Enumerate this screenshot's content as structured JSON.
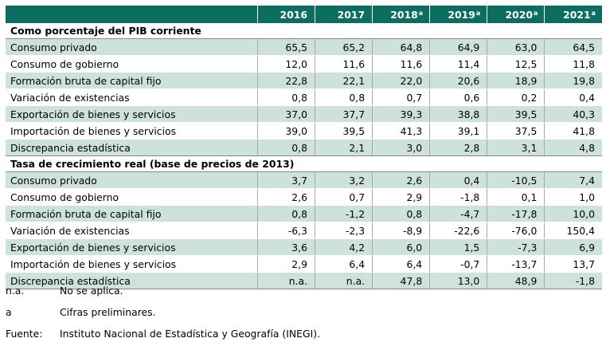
{
  "table": {
    "headers": [
      {
        "label": "2016",
        "sup": ""
      },
      {
        "label": "2017",
        "sup": ""
      },
      {
        "label": "2018",
        "sup": "a"
      },
      {
        "label": "2019",
        "sup": "a"
      },
      {
        "label": "2020",
        "sup": "a"
      },
      {
        "label": "2021",
        "sup": "a"
      }
    ],
    "sections": [
      {
        "title": "Como porcentaje del PIB corriente",
        "rows": [
          {
            "label": "Consumo privado",
            "values": [
              "65,5",
              "65,2",
              "64,8",
              "64,9",
              "63,0",
              "64,5"
            ]
          },
          {
            "label": "Consumo de gobierno",
            "values": [
              "12,0",
              "11,6",
              "11,6",
              "11,4",
              "12,5",
              "11,8"
            ]
          },
          {
            "label": "Formación bruta de capital fijo",
            "values": [
              "22,8",
              "22,1",
              "22,0",
              "20,6",
              "18,9",
              "19,8"
            ]
          },
          {
            "label": "Variación de existencias",
            "values": [
              "0,8",
              "0,8",
              "0,7",
              "0,6",
              "0,2",
              "0,4"
            ]
          },
          {
            "label": "Exportación de bienes y servicios",
            "values": [
              "37,0",
              "37,7",
              "39,3",
              "38,8",
              "39,5",
              "40,3"
            ]
          },
          {
            "label": "Importación de bienes y servicios",
            "values": [
              "39,0",
              "39,5",
              "41,3",
              "39,1",
              "37,5",
              "41,8"
            ]
          },
          {
            "label": "Discrepancia estadística",
            "values": [
              "0,8",
              "2,1",
              "3,0",
              "2,8",
              "3,1",
              "4,8"
            ]
          }
        ]
      },
      {
        "title": "Tasa de crecimiento real (base de precios de 2013)",
        "rows": [
          {
            "label": "Consumo privado",
            "values": [
              "3,7",
              "3,2",
              "2,6",
              "0,4",
              "-10,5",
              "7,4"
            ]
          },
          {
            "label": "Consumo de gobierno",
            "values": [
              "2,6",
              "0,7",
              "2,9",
              "-1,8",
              "0,1",
              "1,0"
            ]
          },
          {
            "label": "Formación bruta de capital fijo",
            "values": [
              "0,8",
              "-1,2",
              "0,8",
              "-4,7",
              "-17,8",
              "10,0"
            ]
          },
          {
            "label": "Variación de existencias",
            "values": [
              "-6,3",
              "-2,3",
              "-8,9",
              "-22,6",
              "-76,0",
              "150,4"
            ]
          },
          {
            "label": "Exportación de bienes y servicios",
            "values": [
              "3,6",
              "4,2",
              "6,0",
              "1,5",
              "-7,3",
              "6,9"
            ]
          },
          {
            "label": "Importación de bienes y servicios",
            "values": [
              "2,9",
              "6,4",
              "6,4",
              "-0,7",
              "-13,7",
              "13,7"
            ]
          },
          {
            "label": "Discrepancia estadística",
            "values": [
              "n.a.",
              "n.a.",
              "47,8",
              "13,0",
              "48,9",
              "-1,8"
            ]
          }
        ]
      }
    ]
  },
  "notes": [
    {
      "key": "n.a.",
      "text": "No se aplica."
    },
    {
      "key": "a",
      "text": "Cifras preliminares."
    },
    {
      "key": "Fuente:",
      "text": "Instituto Nacional de Estadística y Geografía (INEGI)."
    }
  ],
  "colors": {
    "header_bg": "#0c6d61",
    "header_text": "#ffffff",
    "row_shade": "#cde3da"
  }
}
